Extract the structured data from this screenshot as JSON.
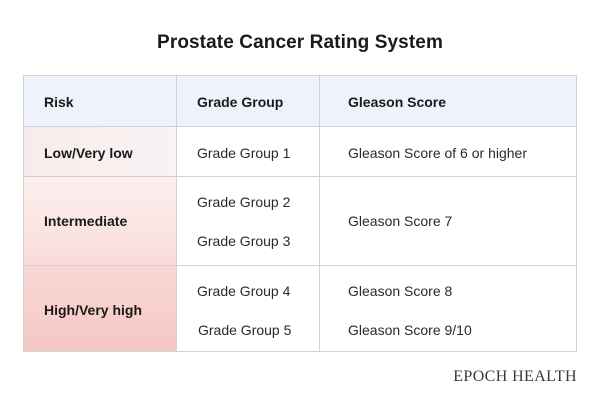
{
  "title": "Prostate Cancer Rating System",
  "table": {
    "headers": [
      "Risk",
      "Grade Group",
      "Gleason Score"
    ],
    "rows": [
      {
        "risk": "Low/Very low",
        "grade_groups": [
          "Grade Group 1"
        ],
        "gleason_scores": [
          "Gleason Score of 6 or higher"
        ]
      },
      {
        "risk": "Intermediate",
        "grade_groups": [
          "Grade Group 2",
          "Grade Group 3"
        ],
        "gleason_scores": [
          "Gleason Score 7"
        ]
      },
      {
        "risk": "High/Very high",
        "grade_groups": [
          "Grade Group 4",
          "Grade Group 5"
        ],
        "gleason_scores": [
          "Gleason Score 8",
          "Gleason Score 9/10"
        ]
      }
    ]
  },
  "logo_text": "EPOCH HEALTH",
  "colors": {
    "header_background": "#eef3fb",
    "risk_gradient_low": "#f7ecec",
    "risk_gradient_high": "#f6c7c3",
    "border": "#d2d2d2"
  }
}
